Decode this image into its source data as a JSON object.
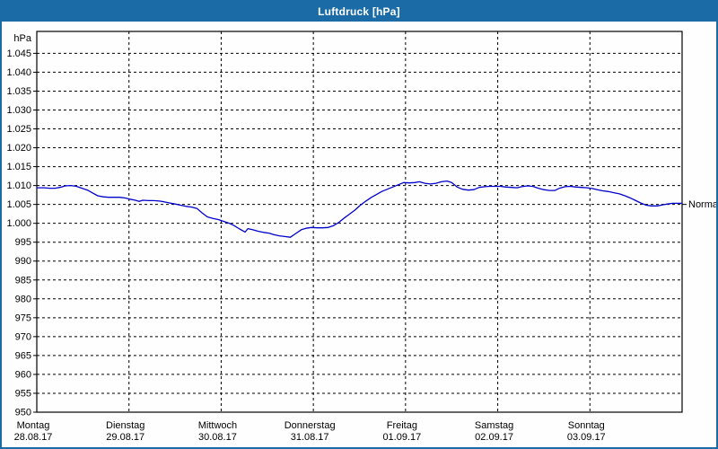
{
  "window": {
    "title": "Luftdruck [hPa]"
  },
  "colors": {
    "frame": "#1b6ca6",
    "titlebar_bg": "#1b6ca6",
    "title_text": "#ffffff",
    "line": "#0000cc",
    "grid": "#000000",
    "axis": "#000000",
    "label_text": "#000000",
    "plot_background": "#fefefe"
  },
  "chart_data": {
    "type": "line",
    "title": "Luftdruck [hPa]",
    "y_unit": "hPa",
    "ylim": [
      950,
      1050.8
    ],
    "grid": true,
    "grid_style": "dashed",
    "yticks": [
      {
        "value": 1045,
        "label": "1.045"
      },
      {
        "value": 1040,
        "label": "1.040"
      },
      {
        "value": 1035,
        "label": "1.035"
      },
      {
        "value": 1030,
        "label": "1.030"
      },
      {
        "value": 1025,
        "label": "1.025"
      },
      {
        "value": 1020,
        "label": "1.020"
      },
      {
        "value": 1015,
        "label": "1.015"
      },
      {
        "value": 1010,
        "label": "1.010"
      },
      {
        "value": 1005,
        "label": "1.005"
      },
      {
        "value": 1000,
        "label": "1.000"
      },
      {
        "value": 995,
        "label": "995"
      },
      {
        "value": 990,
        "label": "990"
      },
      {
        "value": 985,
        "label": "985"
      },
      {
        "value": 980,
        "label": "980"
      },
      {
        "value": 975,
        "label": "975"
      },
      {
        "value": 970,
        "label": "970"
      },
      {
        "value": 965,
        "label": "965"
      },
      {
        "value": 960,
        "label": "960"
      },
      {
        "value": 955,
        "label": "955"
      },
      {
        "value": 950,
        "label": "950"
      }
    ],
    "x_days": [
      {
        "name": "Montag",
        "date": "28.08.17"
      },
      {
        "name": "Dienstag",
        "date": "29.08.17"
      },
      {
        "name": "Mittwoch",
        "date": "30.08.17"
      },
      {
        "name": "Donnerstag",
        "date": "31.08.17"
      },
      {
        "name": "Freitag",
        "date": "01.09.17"
      },
      {
        "name": "Samstag",
        "date": "02.09.17"
      },
      {
        "name": "Sonntag",
        "date": "03.09.17"
      }
    ],
    "annotation": {
      "label": "Normal",
      "value": 1005
    },
    "series": [
      {
        "name": "Luftdruck",
        "color": "#0000cc",
        "x_unit": "days_since_2017-08-28",
        "points": [
          [
            0.0,
            1009.4
          ],
          [
            0.08,
            1009.4
          ],
          [
            0.14,
            1009.3
          ],
          [
            0.2,
            1009.3
          ],
          [
            0.25,
            1009.5
          ],
          [
            0.31,
            1009.9
          ],
          [
            0.37,
            1010.0
          ],
          [
            0.43,
            1009.8
          ],
          [
            0.49,
            1009.3
          ],
          [
            0.55,
            1008.8
          ],
          [
            0.6,
            1008.1
          ],
          [
            0.66,
            1007.3
          ],
          [
            0.72,
            1007.0
          ],
          [
            0.78,
            1006.9
          ],
          [
            0.84,
            1006.9
          ],
          [
            0.9,
            1006.9
          ],
          [
            0.96,
            1006.7
          ],
          [
            1.01,
            1006.4
          ],
          [
            1.07,
            1006.1
          ],
          [
            1.11,
            1005.8
          ],
          [
            1.15,
            1006.1
          ],
          [
            1.21,
            1006.0
          ],
          [
            1.27,
            1006.0
          ],
          [
            1.33,
            1005.9
          ],
          [
            1.38,
            1005.7
          ],
          [
            1.44,
            1005.4
          ],
          [
            1.5,
            1005.1
          ],
          [
            1.56,
            1004.8
          ],
          [
            1.62,
            1004.5
          ],
          [
            1.68,
            1004.3
          ],
          [
            1.74,
            1003.9
          ],
          [
            1.79,
            1002.8
          ],
          [
            1.85,
            1001.7
          ],
          [
            1.91,
            1001.3
          ],
          [
            1.97,
            1001.0
          ],
          [
            2.03,
            1000.5
          ],
          [
            2.09,
            1000.0
          ],
          [
            2.14,
            999.4
          ],
          [
            2.2,
            998.5
          ],
          [
            2.26,
            997.7
          ],
          [
            2.29,
            998.6
          ],
          [
            2.34,
            998.3
          ],
          [
            2.4,
            997.9
          ],
          [
            2.46,
            997.6
          ],
          [
            2.52,
            997.4
          ],
          [
            2.57,
            997.0
          ],
          [
            2.63,
            996.7
          ],
          [
            2.69,
            996.5
          ],
          [
            2.75,
            996.3
          ],
          [
            2.81,
            997.3
          ],
          [
            2.87,
            998.3
          ],
          [
            2.92,
            998.7
          ],
          [
            2.98,
            998.9
          ],
          [
            3.04,
            998.8
          ],
          [
            3.1,
            998.8
          ],
          [
            3.16,
            998.9
          ],
          [
            3.22,
            999.4
          ],
          [
            3.28,
            1000.3
          ],
          [
            3.33,
            1001.3
          ],
          [
            3.39,
            1002.4
          ],
          [
            3.45,
            1003.5
          ],
          [
            3.51,
            1004.8
          ],
          [
            3.57,
            1005.9
          ],
          [
            3.63,
            1006.9
          ],
          [
            3.69,
            1007.7
          ],
          [
            3.74,
            1008.4
          ],
          [
            3.8,
            1009.0
          ],
          [
            3.86,
            1009.6
          ],
          [
            3.92,
            1010.2
          ],
          [
            3.98,
            1010.8
          ],
          [
            4.04,
            1010.7
          ],
          [
            4.1,
            1010.8
          ],
          [
            4.15,
            1011.0
          ],
          [
            4.21,
            1010.6
          ],
          [
            4.27,
            1010.4
          ],
          [
            4.33,
            1010.6
          ],
          [
            4.39,
            1011.0
          ],
          [
            4.45,
            1011.2
          ],
          [
            4.5,
            1010.8
          ],
          [
            4.56,
            1009.6
          ],
          [
            4.62,
            1009.0
          ],
          [
            4.68,
            1008.8
          ],
          [
            4.74,
            1008.9
          ],
          [
            4.8,
            1009.5
          ],
          [
            4.86,
            1009.7
          ],
          [
            4.91,
            1009.8
          ],
          [
            4.97,
            1009.8
          ],
          [
            5.03,
            1009.8
          ],
          [
            5.09,
            1009.6
          ],
          [
            5.15,
            1009.5
          ],
          [
            5.21,
            1009.4
          ],
          [
            5.26,
            1009.7
          ],
          [
            5.32,
            1009.9
          ],
          [
            5.38,
            1009.8
          ],
          [
            5.44,
            1009.3
          ],
          [
            5.5,
            1008.9
          ],
          [
            5.56,
            1008.7
          ],
          [
            5.62,
            1008.7
          ],
          [
            5.67,
            1009.3
          ],
          [
            5.73,
            1009.7
          ],
          [
            5.79,
            1009.8
          ],
          [
            5.85,
            1009.6
          ],
          [
            5.91,
            1009.5
          ],
          [
            5.97,
            1009.4
          ],
          [
            6.03,
            1009.2
          ],
          [
            6.08,
            1008.9
          ],
          [
            6.14,
            1008.6
          ],
          [
            6.2,
            1008.4
          ],
          [
            6.26,
            1008.1
          ],
          [
            6.32,
            1007.8
          ],
          [
            6.38,
            1007.3
          ],
          [
            6.43,
            1006.8
          ],
          [
            6.49,
            1006.1
          ],
          [
            6.55,
            1005.4
          ],
          [
            6.61,
            1004.8
          ],
          [
            6.67,
            1004.6
          ],
          [
            6.73,
            1004.6
          ],
          [
            6.79,
            1004.9
          ],
          [
            6.84,
            1005.1
          ],
          [
            6.9,
            1005.3
          ],
          [
            6.96,
            1005.3
          ],
          [
            7.0,
            1005.3
          ]
        ]
      }
    ]
  }
}
